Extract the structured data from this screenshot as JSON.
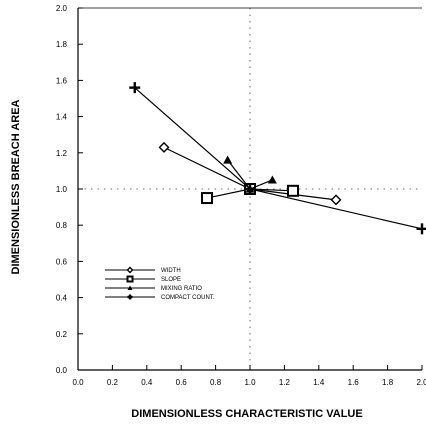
{
  "chart_data": {
    "type": "line",
    "xlabel": "DIMENSIONLESS CHARACTERISTIC VALUE",
    "ylabel": "DIMENSIONLESS BREACH AREA",
    "xlim": [
      0,
      2
    ],
    "ylim": [
      0,
      2
    ],
    "x_ticks": [
      "0.0",
      "0.2",
      "0.4",
      "0.6",
      "0.8",
      "1.0",
      "1.2",
      "1.4",
      "1.6",
      "1.8",
      "2.0"
    ],
    "y_ticks": [
      "0.0",
      "0.2",
      "0.4",
      "0.6",
      "0.8",
      "1.0",
      "1.2",
      "1.4",
      "1.6",
      "1.8",
      "2.0"
    ],
    "reference_lines": {
      "x": 1.0,
      "y": 1.0,
      "style": "dashed"
    },
    "legend_position": "lower-left",
    "series": [
      {
        "name": "WIDTH",
        "marker": "diamond",
        "x": [
          0.5,
          1.0,
          1.5
        ],
        "y": [
          1.23,
          1.0,
          0.94
        ]
      },
      {
        "name": "SLOPE",
        "marker": "square",
        "x": [
          0.75,
          1.0,
          1.25
        ],
        "y": [
          0.95,
          1.0,
          0.99
        ]
      },
      {
        "name": "MIXING RATIO",
        "marker": "triangle",
        "x": [
          0.87,
          1.0,
          1.13
        ],
        "y": [
          1.16,
          1.0,
          1.05
        ]
      },
      {
        "name": "COMPACT COUNT.",
        "marker": "cross",
        "x": [
          0.33,
          1.0,
          2.0
        ],
        "y": [
          1.56,
          1.0,
          0.78
        ]
      }
    ]
  }
}
